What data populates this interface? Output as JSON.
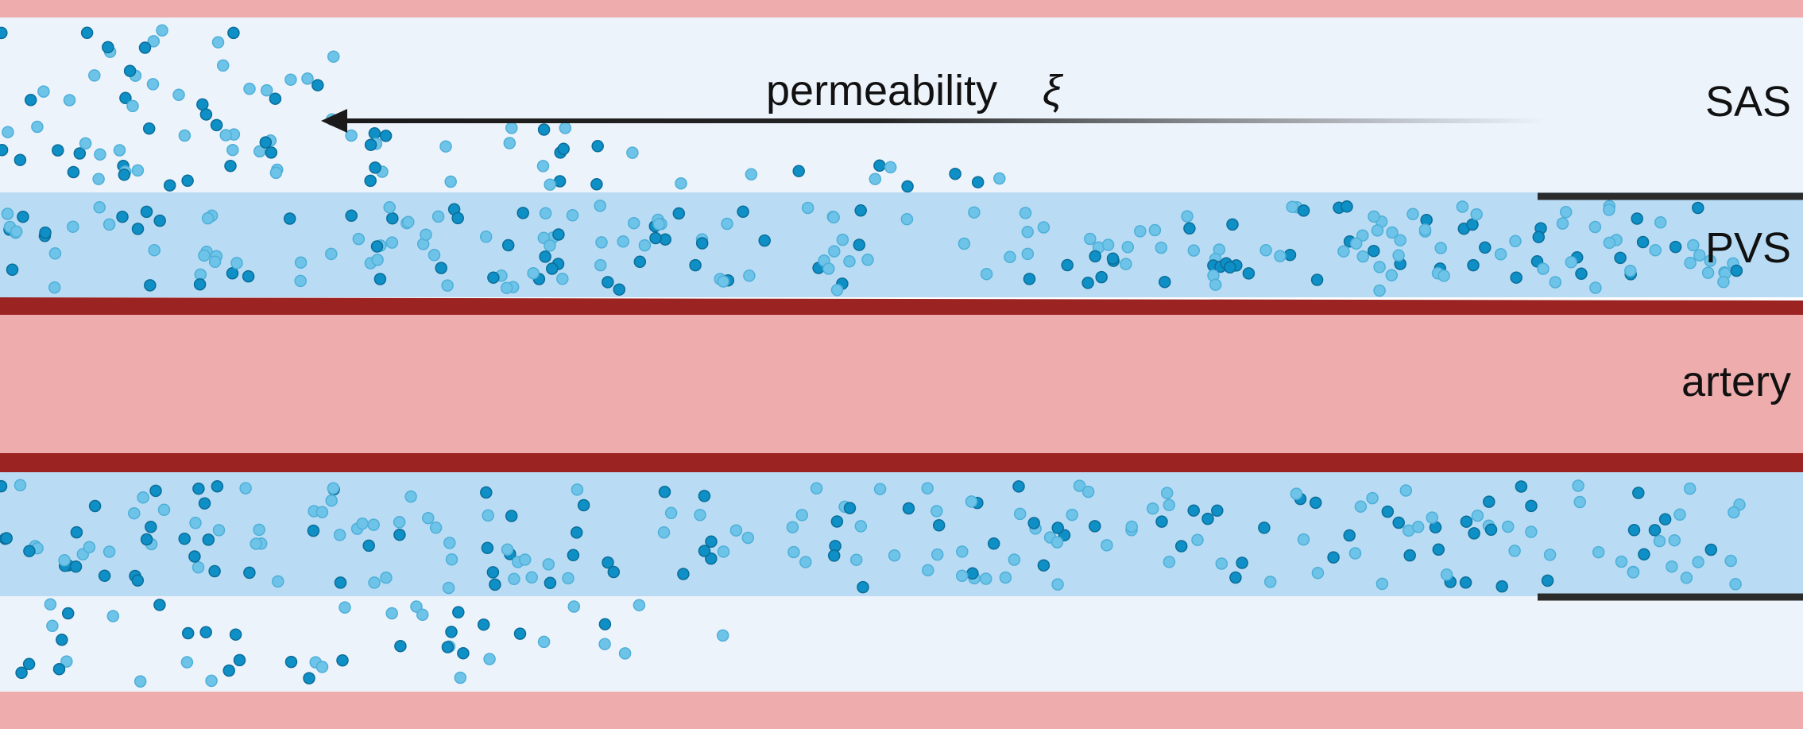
{
  "labels": {
    "sas": "SAS",
    "pvs": "PVS",
    "artery": "artery",
    "permeability": "permeability",
    "permeability_symbol": "ξ"
  },
  "colors": {
    "tissue_pink": "#EEACAD",
    "sas_fill": "#EDF3FB",
    "pvs_fill": "#B9DCF4",
    "vessel_wall": "#9B2423",
    "membrane": "#2B2B2B",
    "particle_dark": "#0E8FC6",
    "particle_light": "#6EC3E8",
    "arrow": "#1A1A1A"
  },
  "icons": {
    "arrow": "arrow-left-icon"
  }
}
